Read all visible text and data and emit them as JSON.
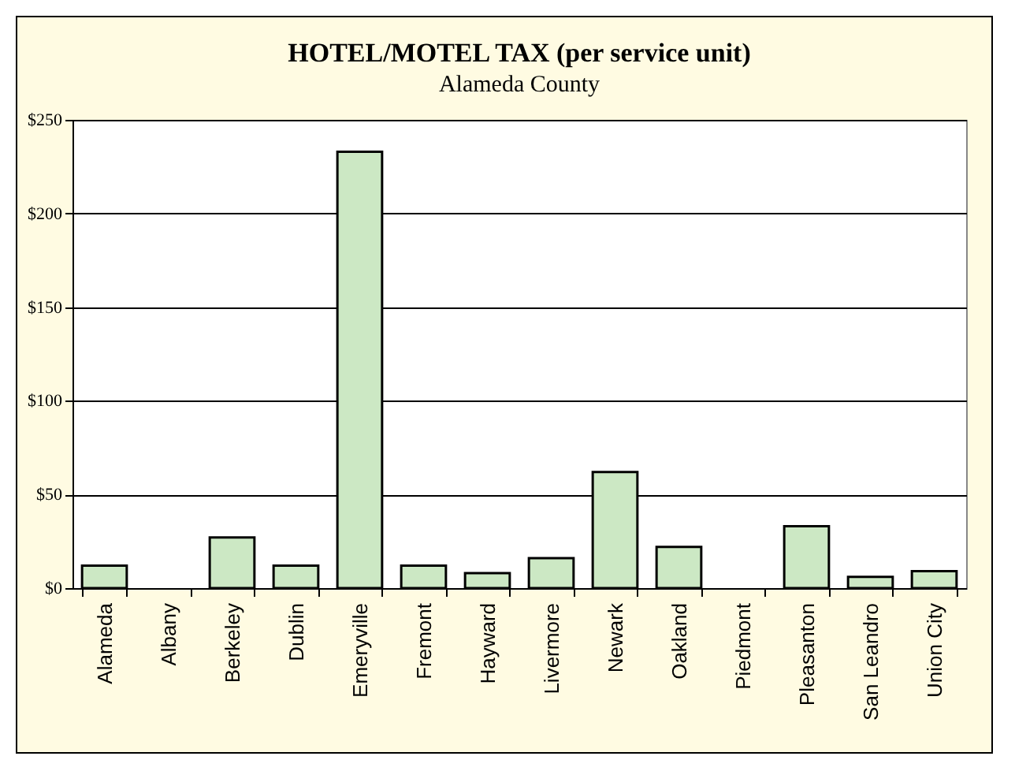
{
  "chart_data": {
    "type": "bar",
    "title": "HOTEL/MOTEL TAX (per service unit)",
    "subtitle": "Alameda County",
    "categories": [
      "Alameda",
      "Albany",
      "Berkeley",
      "Dublin",
      "Emeryville",
      "Fremont",
      "Hayward",
      "Livermore",
      "Newark",
      "Oakland",
      "Piedmont",
      "Pleasanton",
      "San Leandro",
      "Union City"
    ],
    "values": [
      12,
      0,
      27,
      12,
      233,
      12,
      8,
      16,
      62,
      22,
      0,
      33,
      6,
      9
    ],
    "color": "#cce8c4",
    "ylim": [
      0,
      250
    ],
    "yticks": [
      {
        "value": 0,
        "label": "$0"
      },
      {
        "value": 50,
        "label": "$50"
      },
      {
        "value": 100,
        "label": "$100"
      },
      {
        "value": 150,
        "label": "$150"
      },
      {
        "value": 200,
        "label": "$200"
      },
      {
        "value": 250,
        "label": "$250"
      }
    ],
    "grid": "y"
  }
}
